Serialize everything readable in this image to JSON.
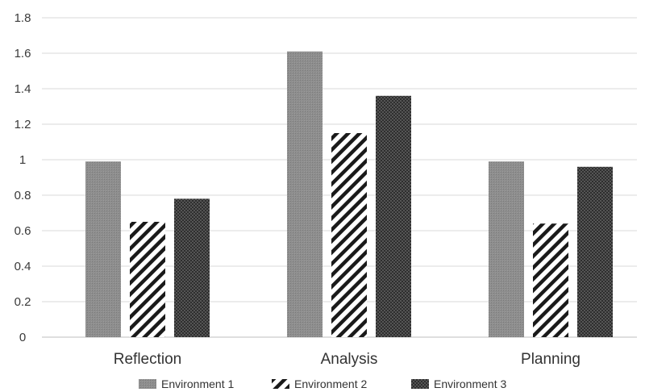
{
  "chart_data": {
    "type": "bar",
    "title": "",
    "xlabel": "",
    "ylabel": "",
    "categories": [
      "Reflection",
      "Analysis",
      "Planning"
    ],
    "series": [
      {
        "name": "Environment 1",
        "values": [
          0.99,
          1.61,
          0.99
        ],
        "pattern": "solid-gray",
        "color": "#8c8c8c"
      },
      {
        "name": "Environment 2",
        "values": [
          0.65,
          1.15,
          0.64
        ],
        "pattern": "diagonal-hatch",
        "color": "#222222"
      },
      {
        "name": "Environment 3",
        "values": [
          0.78,
          1.36,
          0.96
        ],
        "pattern": "dense-dark",
        "color": "#3a3a3a"
      }
    ],
    "ylim": [
      0,
      1.8
    ],
    "yticks": [
      "0",
      "0.2",
      "0.4",
      "0.6",
      "0.8",
      "1",
      "1.2",
      "1.4",
      "1.6",
      "1.8"
    ],
    "grid": true,
    "legend_position": "bottom"
  }
}
